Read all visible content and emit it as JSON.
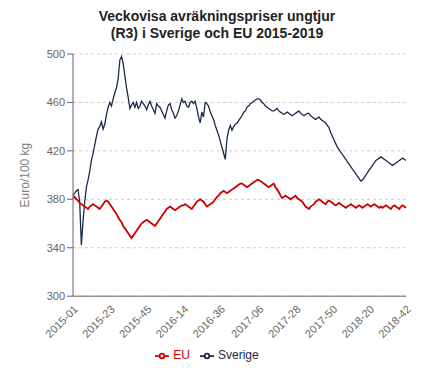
{
  "chart_data": {
    "type": "line",
    "title": "Veckovisa avräkningspriser ungtjur\n(R3) i Sverige och EU 2015-2019",
    "ylabel": "Euro/100 kg",
    "categories": [
      "2015-01",
      null,
      null,
      null,
      null,
      null,
      null,
      null,
      null,
      null,
      null,
      null,
      null,
      null,
      null,
      null,
      null,
      null,
      null,
      null,
      null,
      null,
      "2015-23",
      null,
      null,
      null,
      null,
      null,
      null,
      null,
      null,
      null,
      null,
      null,
      null,
      null,
      null,
      null,
      null,
      null,
      null,
      null,
      null,
      null,
      "2015-45",
      null,
      null,
      null,
      null,
      null,
      null,
      null,
      null,
      null,
      null,
      null,
      null,
      null,
      null,
      null,
      null,
      null,
      null,
      null,
      null,
      null,
      "2016-14",
      null,
      null,
      null,
      null,
      null,
      null,
      null,
      null,
      null,
      null,
      null,
      null,
      null,
      null,
      null,
      null,
      null,
      null,
      null,
      null,
      null,
      "2016-36",
      null,
      null,
      null,
      null,
      null,
      null,
      null,
      null,
      null,
      null,
      null,
      null,
      null,
      null,
      null,
      null,
      null,
      null,
      null,
      null,
      null,
      null,
      "2017-06",
      null,
      null,
      null,
      null,
      null,
      null,
      null,
      null,
      null,
      null,
      null,
      null,
      null,
      null,
      null,
      null,
      null,
      null,
      null,
      null,
      null,
      "2017-28",
      null,
      null,
      null,
      null,
      null,
      null,
      null,
      null,
      null,
      null,
      null,
      null,
      null,
      null,
      null,
      null,
      null,
      null,
      null,
      null,
      null,
      "2017-50",
      null,
      null,
      null,
      null,
      null,
      null,
      null,
      null,
      null,
      null,
      null,
      null,
      null,
      null,
      null,
      null,
      null,
      null,
      null,
      null,
      null,
      "2018-20",
      null,
      null,
      null,
      null,
      null,
      null,
      null,
      null,
      null,
      null,
      null,
      null,
      null,
      null,
      null,
      null,
      null,
      null,
      null,
      null,
      null,
      "2018-42"
    ],
    "series": [
      {
        "name": "Sverige",
        "color": "#1a2a4a",
        "values": [
          383,
          385,
          387,
          388,
          378,
          342,
          362,
          378,
          390,
          396,
          403,
          412,
          418,
          425,
          432,
          438,
          440,
          444,
          438,
          442,
          450,
          456,
          460,
          457,
          463,
          468,
          472,
          480,
          495,
          498,
          492,
          482,
          472,
          464,
          455,
          458,
          460,
          456,
          460,
          455,
          457,
          461,
          459,
          457,
          454,
          458,
          461,
          457,
          454,
          451,
          459,
          457,
          456,
          453,
          450,
          447,
          453,
          458,
          459,
          454,
          451,
          447,
          449,
          453,
          458,
          463,
          460,
          461,
          457,
          456,
          460,
          461,
          459,
          461,
          455,
          448,
          443,
          452,
          448,
          460,
          459,
          457,
          452,
          449,
          446,
          441,
          437,
          433,
          428,
          423,
          418,
          413,
          430,
          437,
          441,
          437,
          440,
          442,
          443,
          445,
          447,
          449,
          452,
          453,
          456,
          457,
          459,
          460,
          461,
          462,
          463,
          463,
          462,
          460,
          459,
          457,
          456,
          455,
          454,
          453,
          453,
          454,
          455,
          453,
          452,
          451,
          450,
          451,
          452,
          451,
          450,
          449,
          450,
          451,
          452,
          453,
          451,
          450,
          449,
          450,
          451,
          451,
          449,
          448,
          447,
          446,
          447,
          448,
          446,
          445,
          444,
          443,
          441,
          439,
          435,
          432,
          429,
          426,
          423,
          421,
          419,
          417,
          415,
          413,
          411,
          409,
          407,
          405,
          403,
          401,
          399,
          397,
          395,
          396,
          398,
          400,
          402,
          404,
          406,
          408,
          410,
          412,
          413,
          414,
          415,
          414,
          413,
          412,
          411,
          410,
          409,
          408,
          409,
          410,
          411,
          412,
          413,
          414,
          413,
          412
        ]
      },
      {
        "name": "EU",
        "color": "#cc0000",
        "values": [
          381,
          382,
          380,
          379,
          377,
          376,
          375,
          374,
          373,
          372,
          374,
          375,
          376,
          375,
          374,
          373,
          372,
          374,
          376,
          378,
          379,
          378,
          376,
          374,
          372,
          370,
          368,
          365,
          363,
          361,
          358,
          356,
          354,
          352,
          350,
          348,
          350,
          352,
          354,
          356,
          358,
          360,
          361,
          362,
          363,
          362,
          361,
          360,
          359,
          358,
          360,
          362,
          364,
          366,
          368,
          370,
          372,
          373,
          374,
          373,
          372,
          371,
          372,
          373,
          374,
          375,
          375,
          376,
          375,
          374,
          373,
          372,
          374,
          376,
          378,
          379,
          380,
          379,
          378,
          376,
          374,
          375,
          376,
          377,
          378,
          380,
          382,
          383,
          385,
          386,
          387,
          386,
          385,
          386,
          387,
          388,
          389,
          390,
          391,
          392,
          393,
          393,
          392,
          391,
          390,
          391,
          392,
          393,
          394,
          395,
          396,
          396,
          395,
          394,
          393,
          392,
          391,
          390,
          391,
          392,
          393,
          390,
          388,
          386,
          383,
          381,
          382,
          383,
          382,
          381,
          380,
          381,
          382,
          383,
          381,
          380,
          379,
          378,
          376,
          374,
          373,
          372,
          374,
          375,
          376,
          378,
          379,
          380,
          379,
          378,
          377,
          376,
          378,
          379,
          378,
          377,
          376,
          375,
          376,
          377,
          376,
          375,
          374,
          373,
          374,
          375,
          376,
          375,
          374,
          373,
          374,
          375,
          374,
          373,
          374,
          375,
          376,
          375,
          374,
          375,
          376,
          375,
          374,
          373,
          374,
          373,
          374,
          375,
          374,
          373,
          372,
          374,
          375,
          374,
          373,
          372,
          374,
          375,
          374,
          373
        ]
      }
    ],
    "ylim": [
      300,
      500
    ],
    "yticks": [
      300,
      340,
      380,
      420,
      460,
      500
    ],
    "grid": true,
    "legend": "bottom"
  }
}
